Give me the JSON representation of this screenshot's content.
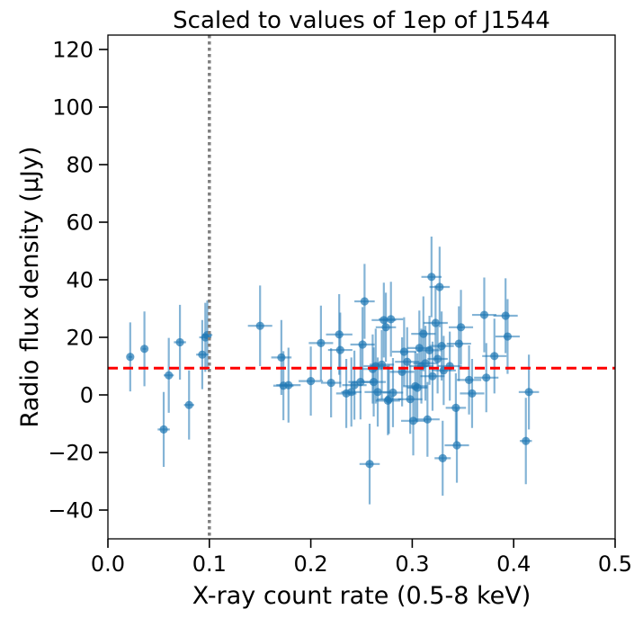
{
  "chart_data": {
    "type": "scatter",
    "title": "Scaled to values of 1ep of J1544",
    "xlabel": "X-ray count rate (0.5-8 keV)",
    "ylabel": "Radio flux density (μJy)",
    "xlim": [
      0.0,
      0.5
    ],
    "ylim": [
      -50,
      125
    ],
    "xticks": [
      0.0,
      0.1,
      0.2,
      0.3,
      0.4,
      0.5
    ],
    "xtick_labels": [
      "0.0",
      "0.1",
      "0.2",
      "0.3",
      "0.4",
      "0.5"
    ],
    "yticks": [
      -40,
      -20,
      0,
      20,
      40,
      60,
      80,
      100,
      120
    ],
    "ytick_labels": [
      "−40",
      "−20",
      "0",
      "20",
      "40",
      "60",
      "80",
      "100",
      "120"
    ],
    "grid": false,
    "legend": "none",
    "colors": {
      "points": "#1f77b4",
      "hline": "#ff0000",
      "vline": "#808080"
    },
    "reference_lines": [
      {
        "orientation": "horizontal",
        "value": 9.3,
        "style": "dashed",
        "color": "#ff0000"
      },
      {
        "orientation": "vertical",
        "value": 0.1,
        "style": "dotted",
        "color": "#808080"
      }
    ],
    "points": [
      {
        "x": 0.022,
        "y": 13.2,
        "xerr": 0.002,
        "yerr": 12
      },
      {
        "x": 0.036,
        "y": 16.0,
        "xerr": 0.002,
        "yerr": 13
      },
      {
        "x": 0.055,
        "y": -12.0,
        "xerr": 0.006,
        "yerr": 13
      },
      {
        "x": 0.06,
        "y": 6.8,
        "xerr": 0.005,
        "yerr": 13
      },
      {
        "x": 0.071,
        "y": 18.3,
        "xerr": 0.006,
        "yerr": 13
      },
      {
        "x": 0.08,
        "y": -3.5,
        "xerr": 0.005,
        "yerr": 12
      },
      {
        "x": 0.093,
        "y": 14.0,
        "xerr": 0.006,
        "yerr": 12
      },
      {
        "x": 0.096,
        "y": 20.0,
        "xerr": 0.006,
        "yerr": 12
      },
      {
        "x": 0.098,
        "y": 20.8,
        "xerr": 0.005,
        "yerr": 12
      },
      {
        "x": 0.15,
        "y": 24.0,
        "xerr": 0.012,
        "yerr": 14
      },
      {
        "x": 0.171,
        "y": 13.0,
        "xerr": 0.01,
        "yerr": 13
      },
      {
        "x": 0.173,
        "y": 3.2,
        "xerr": 0.01,
        "yerr": 12
      },
      {
        "x": 0.178,
        "y": 3.4,
        "xerr": 0.012,
        "yerr": 13
      },
      {
        "x": 0.2,
        "y": 4.8,
        "xerr": 0.012,
        "yerr": 12
      },
      {
        "x": 0.21,
        "y": 18.0,
        "xerr": 0.012,
        "yerr": 13
      },
      {
        "x": 0.22,
        "y": 4.2,
        "xerr": 0.01,
        "yerr": 12
      },
      {
        "x": 0.228,
        "y": 21.0,
        "xerr": 0.013,
        "yerr": 14
      },
      {
        "x": 0.229,
        "y": 15.6,
        "xerr": 0.012,
        "yerr": 13
      },
      {
        "x": 0.235,
        "y": 0.5,
        "xerr": 0.01,
        "yerr": 12
      },
      {
        "x": 0.24,
        "y": 1.0,
        "xerr": 0.01,
        "yerr": 12
      },
      {
        "x": 0.243,
        "y": 3.4,
        "xerr": 0.012,
        "yerr": 12
      },
      {
        "x": 0.249,
        "y": 4.5,
        "xerr": 0.012,
        "yerr": 13
      },
      {
        "x": 0.251,
        "y": 17.5,
        "xerr": 0.012,
        "yerr": 13
      },
      {
        "x": 0.253,
        "y": 32.5,
        "xerr": 0.01,
        "yerr": 13
      },
      {
        "x": 0.258,
        "y": -24.0,
        "xerr": 0.01,
        "yerr": 14
      },
      {
        "x": 0.261,
        "y": 9.0,
        "xerr": 0.01,
        "yerr": 12
      },
      {
        "x": 0.262,
        "y": 4.5,
        "xerr": 0.012,
        "yerr": 12
      },
      {
        "x": 0.264,
        "y": 10.0,
        "xerr": 0.012,
        "yerr": 13
      },
      {
        "x": 0.266,
        "y": 1.0,
        "xerr": 0.013,
        "yerr": 12
      },
      {
        "x": 0.27,
        "y": 10.5,
        "xerr": 0.012,
        "yerr": 12
      },
      {
        "x": 0.272,
        "y": 26.0,
        "xerr": 0.012,
        "yerr": 13
      },
      {
        "x": 0.274,
        "y": 23.5,
        "xerr": 0.01,
        "yerr": 12
      },
      {
        "x": 0.276,
        "y": -2.0,
        "xerr": 0.012,
        "yerr": 12
      },
      {
        "x": 0.277,
        "y": -1.5,
        "xerr": 0.012,
        "yerr": 12
      },
      {
        "x": 0.279,
        "y": 26.3,
        "xerr": 0.012,
        "yerr": 13
      },
      {
        "x": 0.281,
        "y": 0.8,
        "xerr": 0.01,
        "yerr": 12
      },
      {
        "x": 0.29,
        "y": 8.0,
        "xerr": 0.012,
        "yerr": 12
      },
      {
        "x": 0.292,
        "y": 15.0,
        "xerr": 0.012,
        "yerr": 12
      },
      {
        "x": 0.295,
        "y": 11.5,
        "xerr": 0.012,
        "yerr": 12
      },
      {
        "x": 0.298,
        "y": -1.5,
        "xerr": 0.012,
        "yerr": 12
      },
      {
        "x": 0.301,
        "y": -9.0,
        "xerr": 0.012,
        "yerr": 12
      },
      {
        "x": 0.303,
        "y": 3.0,
        "xerr": 0.012,
        "yerr": 12
      },
      {
        "x": 0.305,
        "y": 2.5,
        "xerr": 0.01,
        "yerr": 12
      },
      {
        "x": 0.307,
        "y": 16.3,
        "xerr": 0.012,
        "yerr": 13
      },
      {
        "x": 0.309,
        "y": 10.0,
        "xerr": 0.012,
        "yerr": 13
      },
      {
        "x": 0.311,
        "y": 21.2,
        "xerr": 0.012,
        "yerr": 13
      },
      {
        "x": 0.313,
        "y": 11.0,
        "xerr": 0.012,
        "yerr": 13
      },
      {
        "x": 0.315,
        "y": -8.5,
        "xerr": 0.012,
        "yerr": 13
      },
      {
        "x": 0.317,
        "y": 15.5,
        "xerr": 0.012,
        "yerr": 12
      },
      {
        "x": 0.319,
        "y": 41.0,
        "xerr": 0.01,
        "yerr": 14
      },
      {
        "x": 0.32,
        "y": 6.5,
        "xerr": 0.012,
        "yerr": 12
      },
      {
        "x": 0.323,
        "y": 25.0,
        "xerr": 0.012,
        "yerr": 13
      },
      {
        "x": 0.325,
        "y": 12.5,
        "xerr": 0.01,
        "yerr": 12
      },
      {
        "x": 0.327,
        "y": 37.5,
        "xerr": 0.01,
        "yerr": 14
      },
      {
        "x": 0.329,
        "y": 17.0,
        "xerr": 0.012,
        "yerr": 12
      },
      {
        "x": 0.33,
        "y": -22.0,
        "xerr": 0.008,
        "yerr": 13
      },
      {
        "x": 0.331,
        "y": 8.5,
        "xerr": 0.012,
        "yerr": 12
      },
      {
        "x": 0.337,
        "y": 10.0,
        "xerr": 0.012,
        "yerr": 12
      },
      {
        "x": 0.343,
        "y": -4.5,
        "xerr": 0.01,
        "yerr": 12
      },
      {
        "x": 0.344,
        "y": -17.5,
        "xerr": 0.012,
        "yerr": 13
      },
      {
        "x": 0.346,
        "y": 17.8,
        "xerr": 0.012,
        "yerr": 13
      },
      {
        "x": 0.348,
        "y": 23.5,
        "xerr": 0.012,
        "yerr": 13
      },
      {
        "x": 0.356,
        "y": 5.2,
        "xerr": 0.012,
        "yerr": 12
      },
      {
        "x": 0.359,
        "y": 0.5,
        "xerr": 0.012,
        "yerr": 12
      },
      {
        "x": 0.371,
        "y": 27.8,
        "xerr": 0.012,
        "yerr": 13
      },
      {
        "x": 0.373,
        "y": 6.0,
        "xerr": 0.012,
        "yerr": 12
      },
      {
        "x": 0.381,
        "y": 13.5,
        "xerr": 0.012,
        "yerr": 13
      },
      {
        "x": 0.392,
        "y": 27.5,
        "xerr": 0.012,
        "yerr": 13
      },
      {
        "x": 0.394,
        "y": 20.3,
        "xerr": 0.012,
        "yerr": 13
      },
      {
        "x": 0.412,
        "y": -16.0,
        "xerr": 0.006,
        "yerr": 15
      },
      {
        "x": 0.415,
        "y": 1.0,
        "xerr": 0.01,
        "yerr": 13
      }
    ]
  }
}
